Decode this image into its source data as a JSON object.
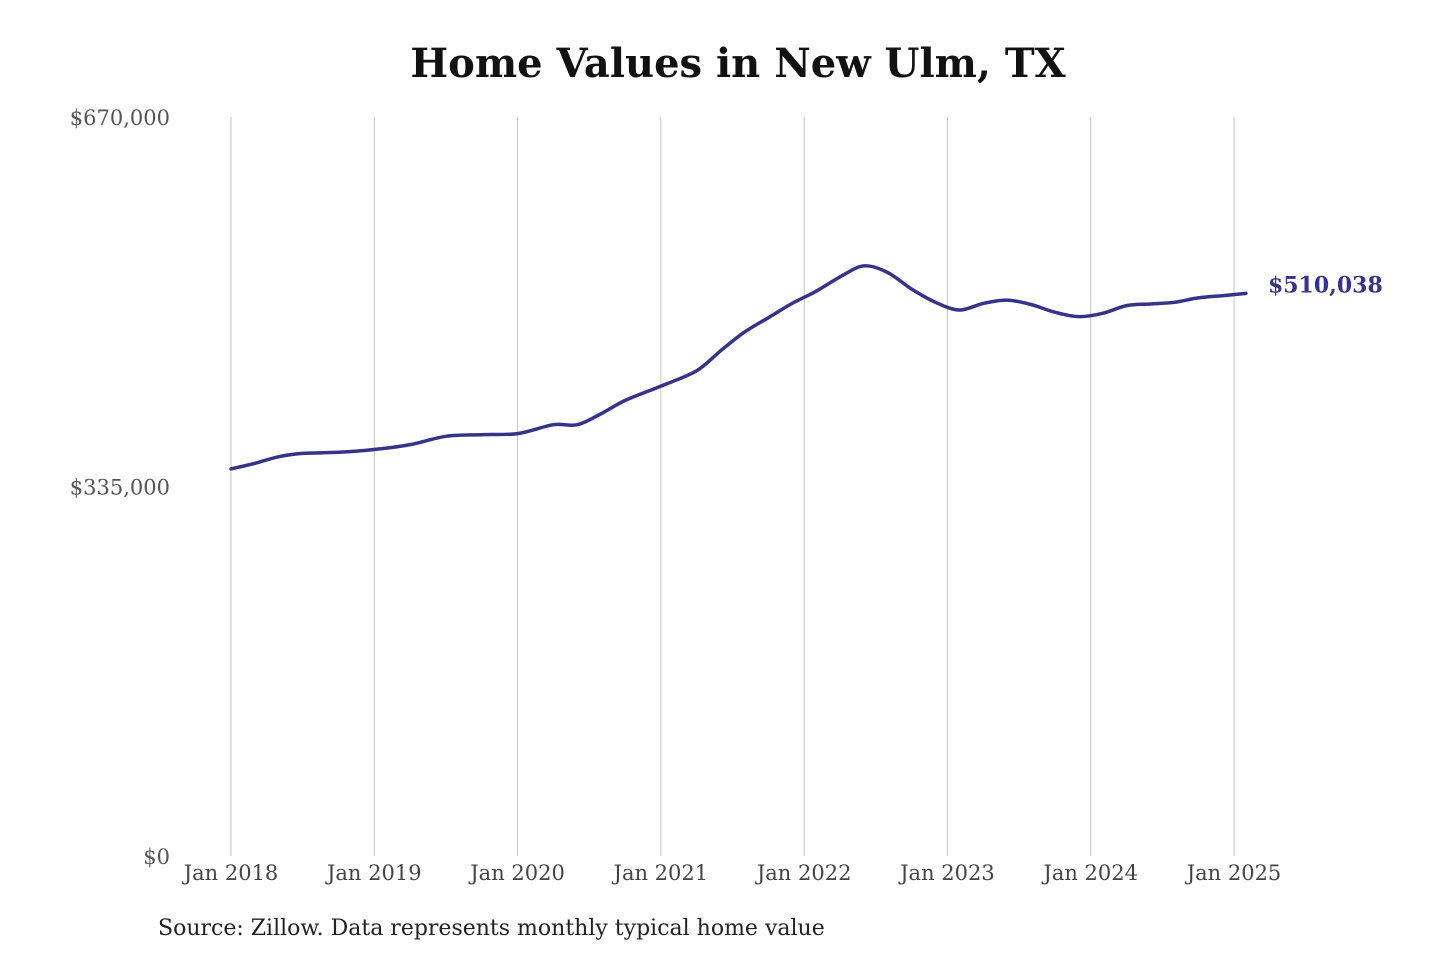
{
  "chart_data": {
    "type": "line",
    "title": "Home Values in New Ulm, TX",
    "source": "Source: Zillow. Data represents monthly typical home value",
    "xlabel": "",
    "ylabel": "",
    "ylim": [
      0,
      670000
    ],
    "y_ticks": [
      {
        "value": 0,
        "label": "$0"
      },
      {
        "value": 335000,
        "label": "$335,000"
      },
      {
        "value": 670000,
        "label": "$670,000"
      }
    ],
    "x_ticks": [
      {
        "value": "2018-01",
        "label": "Jan 2018"
      },
      {
        "value": "2019-01",
        "label": "Jan 2019"
      },
      {
        "value": "2020-01",
        "label": "Jan 2020"
      },
      {
        "value": "2021-01",
        "label": "Jan 2021"
      },
      {
        "value": "2022-01",
        "label": "Jan 2022"
      },
      {
        "value": "2023-01",
        "label": "Jan 2023"
      },
      {
        "value": "2024-01",
        "label": "Jan 2024"
      },
      {
        "value": "2025-01",
        "label": "Jan 2025"
      }
    ],
    "grid": {
      "vertical": true,
      "horizontal": false
    },
    "series": [
      {
        "color": "#36338a",
        "end_label": "$510,038",
        "points": [
          {
            "x": "2018-01",
            "y": 351000
          },
          {
            "x": "2018-03",
            "y": 356000
          },
          {
            "x": "2018-05",
            "y": 362000
          },
          {
            "x": "2018-07",
            "y": 365000
          },
          {
            "x": "2018-10",
            "y": 366000
          },
          {
            "x": "2019-01",
            "y": 368500
          },
          {
            "x": "2019-04",
            "y": 373000
          },
          {
            "x": "2019-07",
            "y": 380500
          },
          {
            "x": "2019-10",
            "y": 382000
          },
          {
            "x": "2020-01",
            "y": 383000
          },
          {
            "x": "2020-04",
            "y": 391000
          },
          {
            "x": "2020-06",
            "y": 391000
          },
          {
            "x": "2020-08",
            "y": 401000
          },
          {
            "x": "2020-10",
            "y": 413000
          },
          {
            "x": "2021-01",
            "y": 426000
          },
          {
            "x": "2021-04",
            "y": 440000
          },
          {
            "x": "2021-06",
            "y": 458000
          },
          {
            "x": "2021-08",
            "y": 475000
          },
          {
            "x": "2021-10",
            "y": 488000
          },
          {
            "x": "2021-12",
            "y": 501000
          },
          {
            "x": "2022-02",
            "y": 512000
          },
          {
            "x": "2022-04",
            "y": 525000
          },
          {
            "x": "2022-06",
            "y": 535000
          },
          {
            "x": "2022-08",
            "y": 529000
          },
          {
            "x": "2022-10",
            "y": 514000
          },
          {
            "x": "2022-12",
            "y": 502000
          },
          {
            "x": "2023-02",
            "y": 495000
          },
          {
            "x": "2023-04",
            "y": 501000
          },
          {
            "x": "2023-06",
            "y": 504000
          },
          {
            "x": "2023-08",
            "y": 500000
          },
          {
            "x": "2023-10",
            "y": 493000
          },
          {
            "x": "2023-12",
            "y": 489000
          },
          {
            "x": "2024-02",
            "y": 492000
          },
          {
            "x": "2024-04",
            "y": 499000
          },
          {
            "x": "2024-06",
            "y": 500500
          },
          {
            "x": "2024-08",
            "y": 502000
          },
          {
            "x": "2024-10",
            "y": 506000
          },
          {
            "x": "2024-12",
            "y": 508000
          },
          {
            "x": "2025-02",
            "y": 510038
          }
        ]
      }
    ]
  }
}
